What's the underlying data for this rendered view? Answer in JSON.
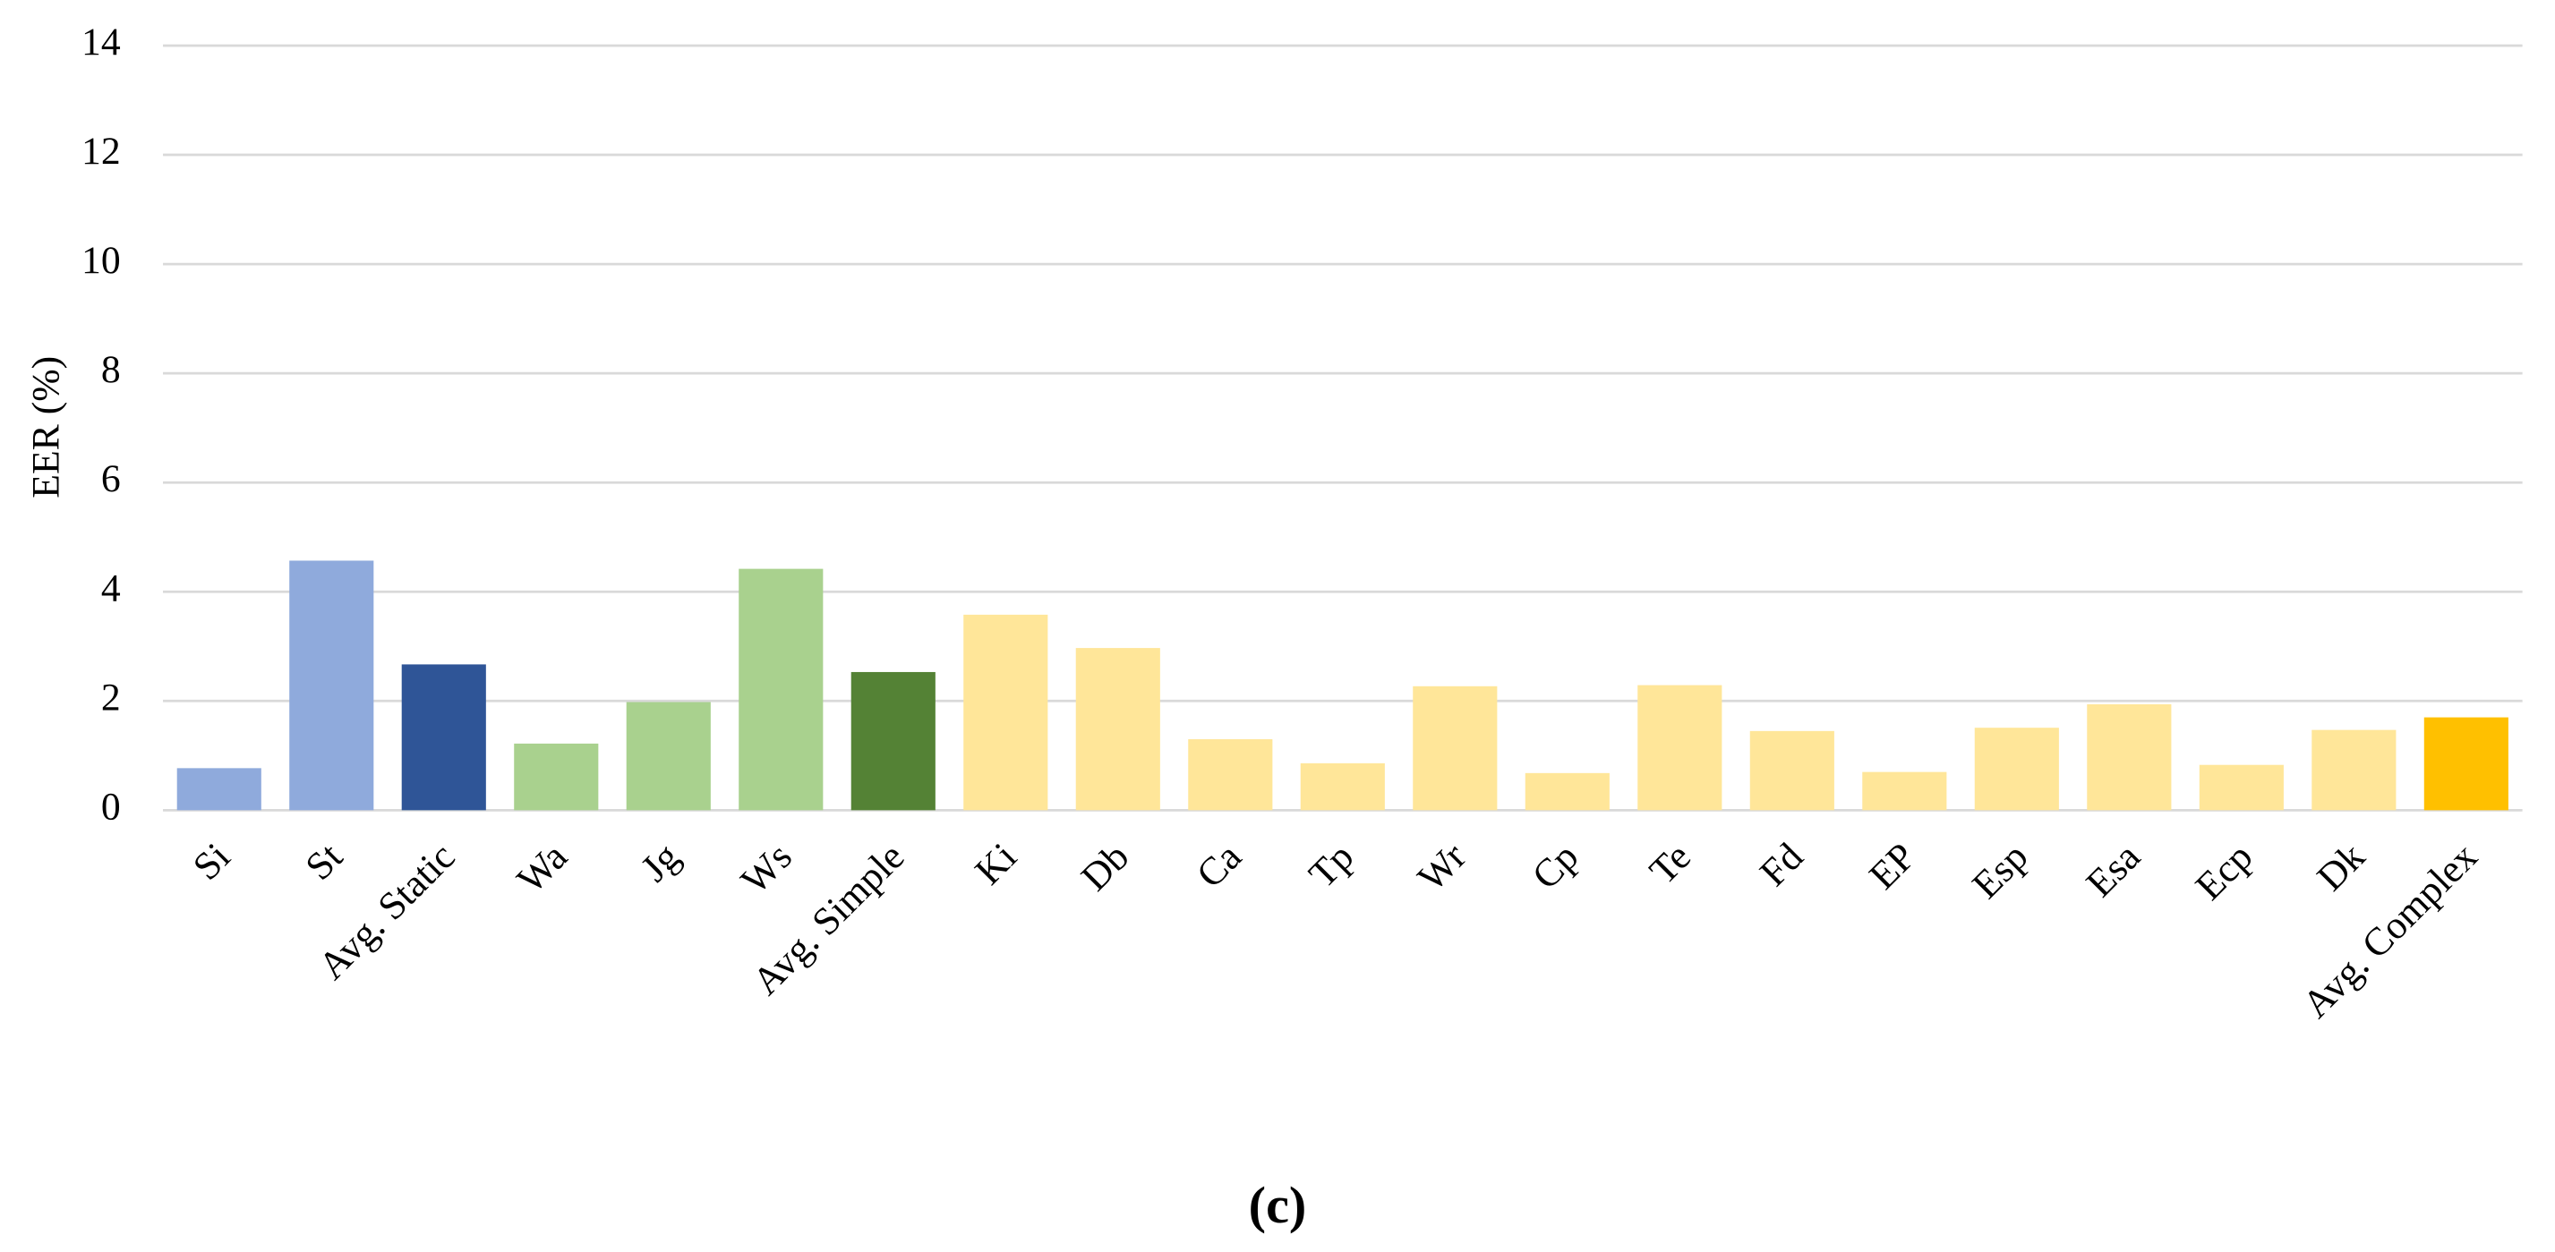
{
  "chart_data": {
    "type": "bar",
    "y_label": "EER (%)",
    "caption": "(c)",
    "categories": [
      "Si",
      "St",
      "Avg. Static",
      "Wa",
      "Jg",
      "Ws",
      "Avg. Simple",
      "Ki",
      "Db",
      "Ca",
      "Tp",
      "Wr",
      "Cp",
      "Te",
      "Fd",
      "EP",
      "Esp",
      "Esa",
      "Ecp",
      "Dk",
      "Avg. Complex"
    ],
    "values": [
      0.77,
      4.57,
      2.67,
      1.22,
      1.98,
      4.42,
      2.53,
      3.58,
      2.97,
      1.3,
      0.86,
      2.27,
      0.68,
      2.29,
      1.45,
      0.7,
      1.51,
      1.94,
      0.83,
      1.47,
      1.7
    ],
    "colors": [
      "#8faadc",
      "#8faadc",
      "#2f5597",
      "#a9d18e",
      "#a9d18e",
      "#a9d18e",
      "#548235",
      "#ffe699",
      "#ffe699",
      "#ffe699",
      "#ffe699",
      "#ffe699",
      "#ffe699",
      "#ffe699",
      "#ffe699",
      "#ffe699",
      "#ffe699",
      "#ffe699",
      "#ffe699",
      "#ffe699",
      "#ffc000"
    ],
    "ylim": [
      0,
      14
    ],
    "yticks": [
      0,
      2,
      4,
      6,
      8,
      10,
      12,
      14
    ],
    "grid": true
  }
}
